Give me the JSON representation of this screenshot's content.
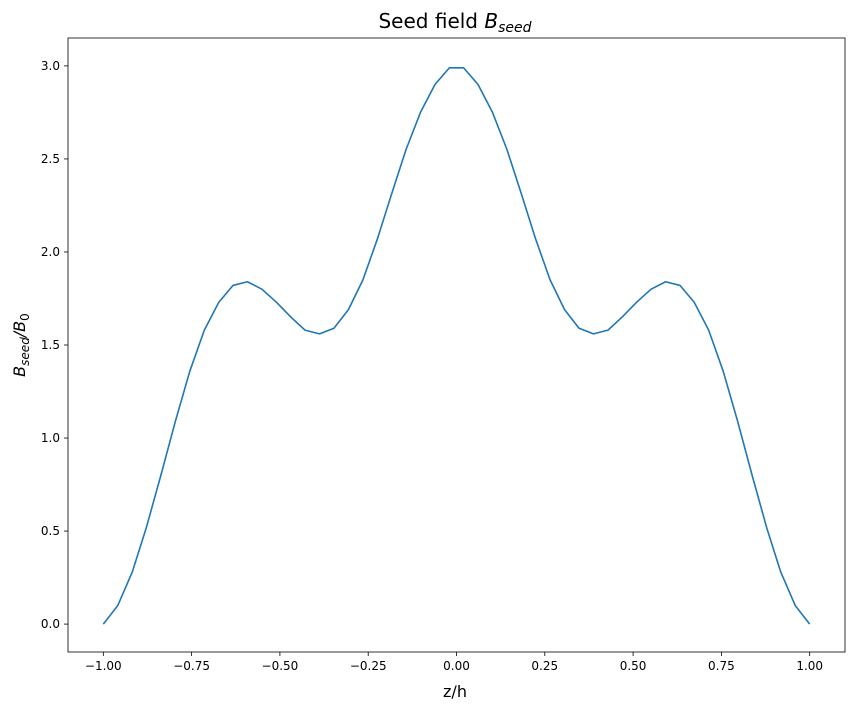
{
  "chart_data": {
    "type": "line",
    "title": {
      "main": "Seed field ",
      "math_base": "B",
      "math_sub": "seed"
    },
    "xlabel": "z/h",
    "ylabel": {
      "base1": "B",
      "sub1": "seed",
      "slash": "/",
      "base2": "B",
      "sub2": "0"
    },
    "xlim": [
      -1.1,
      1.1
    ],
    "ylim": [
      -0.15,
      3.15
    ],
    "xticks": [
      -1.0,
      -0.75,
      -0.5,
      -0.25,
      0.0,
      0.25,
      0.5,
      0.75,
      1.0
    ],
    "xtick_labels": [
      "−1.00",
      "−0.75",
      "−0.50",
      "−0.25",
      "0.00",
      "0.25",
      "0.50",
      "0.75",
      "1.00"
    ],
    "yticks": [
      0.0,
      0.5,
      1.0,
      1.5,
      2.0,
      2.5,
      3.0
    ],
    "ytick_labels": [
      "0.0",
      "0.5",
      "1.0",
      "1.5",
      "2.0",
      "2.5",
      "3.0"
    ],
    "grid": false,
    "legend": "none",
    "series": [
      {
        "color": "#1f77b4",
        "x": [
          -1.0,
          -0.959,
          -0.918,
          -0.878,
          -0.837,
          -0.796,
          -0.755,
          -0.714,
          -0.673,
          -0.633,
          -0.592,
          -0.551,
          -0.51,
          -0.469,
          -0.429,
          -0.388,
          -0.347,
          -0.306,
          -0.265,
          -0.224,
          -0.184,
          -0.143,
          -0.102,
          -0.061,
          -0.02,
          0.02,
          0.061,
          0.102,
          0.143,
          0.184,
          0.224,
          0.265,
          0.306,
          0.347,
          0.388,
          0.429,
          0.469,
          0.51,
          0.551,
          0.592,
          0.633,
          0.673,
          0.714,
          0.755,
          0.796,
          0.837,
          0.878,
          0.918,
          0.959,
          1.0
        ],
        "y": [
          0.0,
          0.1,
          0.28,
          0.52,
          0.8,
          1.09,
          1.36,
          1.58,
          1.73,
          1.82,
          1.84,
          1.8,
          1.73,
          1.65,
          1.58,
          1.56,
          1.59,
          1.69,
          1.85,
          2.07,
          2.31,
          2.55,
          2.75,
          2.9,
          2.99,
          2.99,
          2.9,
          2.75,
          2.55,
          2.31,
          2.07,
          1.85,
          1.69,
          1.59,
          1.56,
          1.58,
          1.65,
          1.73,
          1.8,
          1.84,
          1.82,
          1.73,
          1.58,
          1.36,
          1.09,
          0.8,
          0.52,
          0.28,
          0.1,
          0.0
        ]
      }
    ]
  }
}
